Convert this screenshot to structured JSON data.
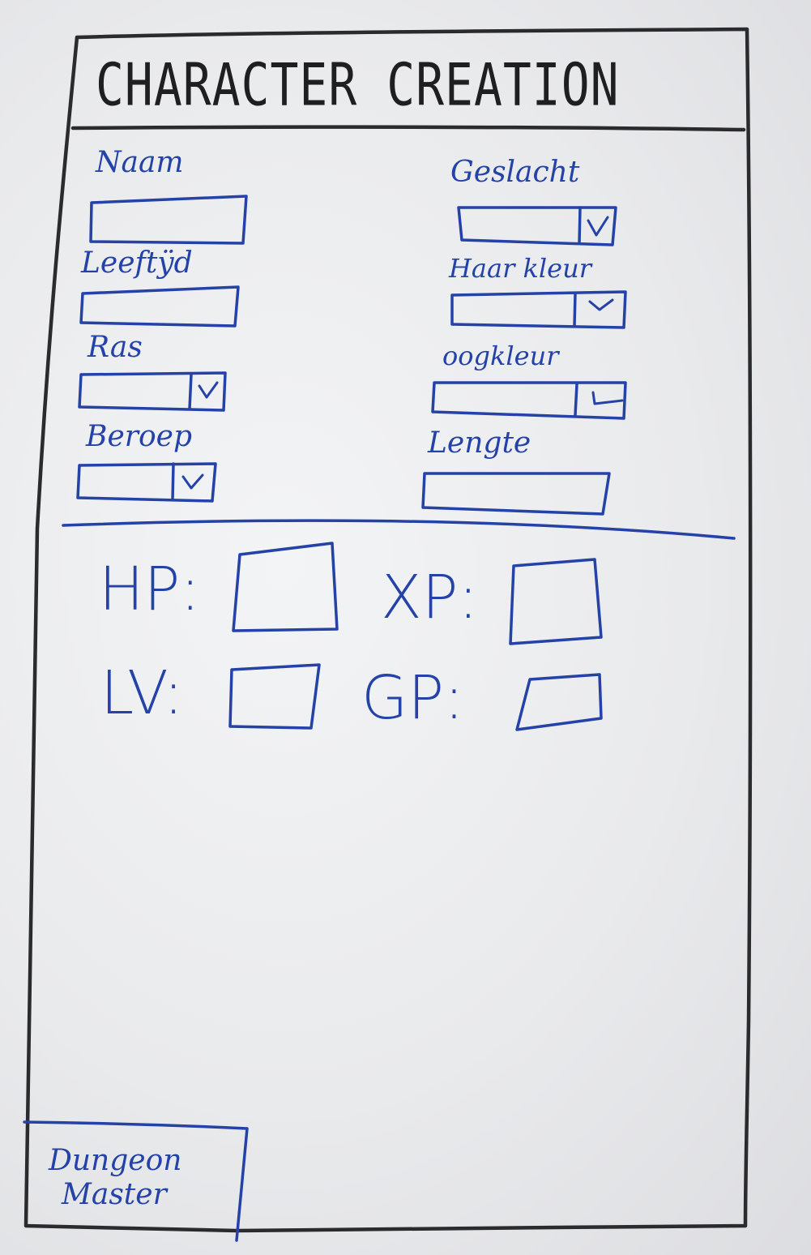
{
  "header": {
    "title": "CHARACTER CREATION"
  },
  "form": {
    "naam": {
      "label": "Naam",
      "value": ""
    },
    "leeftijd": {
      "label": "Leeftÿd",
      "value": ""
    },
    "ras": {
      "label": "Ras",
      "value": ""
    },
    "beroep": {
      "label": "Beroep",
      "value": ""
    },
    "geslacht": {
      "label": "Geslacht",
      "value": ""
    },
    "haarkleur": {
      "label": "Haar kleur",
      "value": ""
    },
    "oogkleur": {
      "label": "oogkleur",
      "value": ""
    },
    "lengte": {
      "label": "Lengte",
      "value": ""
    }
  },
  "stats": {
    "hp": {
      "label": "HP:",
      "value": ""
    },
    "xp": {
      "label": "XP:",
      "value": ""
    },
    "lv": {
      "label": "LV:",
      "value": ""
    },
    "gp": {
      "label": "GP:",
      "value": ""
    }
  },
  "footer": {
    "dm_button_line1": "Dungeon",
    "dm_button_line2": "Master"
  },
  "colors": {
    "frame": "#2b2b2e",
    "marker_blue": "#2442a8",
    "board": "#e9eaec"
  },
  "icons": {
    "dropdown": "chevron-down-icon"
  }
}
